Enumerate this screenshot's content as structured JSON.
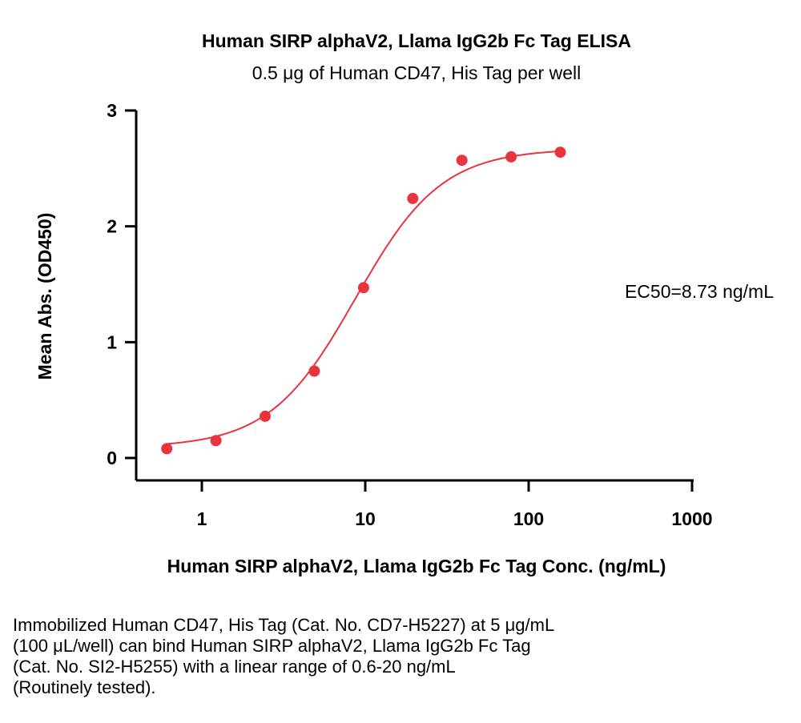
{
  "chart_data": {
    "type": "scatter",
    "title": "Human SIRP alphaV2, Llama IgG2b Fc Tag ELISA",
    "subtitle": "0.5 μg of Human CD47, His Tag per well",
    "xlabel": "Human SIRP alphaV2, Llama IgG2b Fc Tag Conc. (ng/mL)",
    "ylabel": "Mean Abs. (OD450)",
    "x_scale": "log",
    "xlim": [
      0.5,
      1000
    ],
    "ylim": [
      0,
      3
    ],
    "x_ticks": [
      1,
      10,
      100,
      1000
    ],
    "x_tick_labels": [
      "1",
      "10",
      "100",
      "1000"
    ],
    "y_ticks": [
      0,
      1,
      2,
      3
    ],
    "y_tick_labels": [
      "0",
      "1",
      "2",
      "3"
    ],
    "series": [
      {
        "x": [
          0.61,
          1.22,
          2.44,
          4.88,
          9.77,
          19.53,
          39.06,
          78.13,
          156.25
        ],
        "y": [
          0.08,
          0.15,
          0.36,
          0.75,
          1.47,
          2.24,
          2.57,
          2.6,
          2.64
        ],
        "fit": "4PL",
        "color": "#e8343c"
      }
    ],
    "annotation": "EC50=8.73 ng/mL",
    "grid": false
  },
  "caption": [
    "Immobilized Human CD47, His Tag (Cat. No. CD7-H5227) at 5 μg/mL",
    "(100 μL/well) can bind Human SIRP alphaV2, Llama IgG2b Fc Tag",
    "(Cat. No. SI2-H5255) with a linear range of 0.6-20 ng/mL",
    "(Routinely tested)."
  ]
}
